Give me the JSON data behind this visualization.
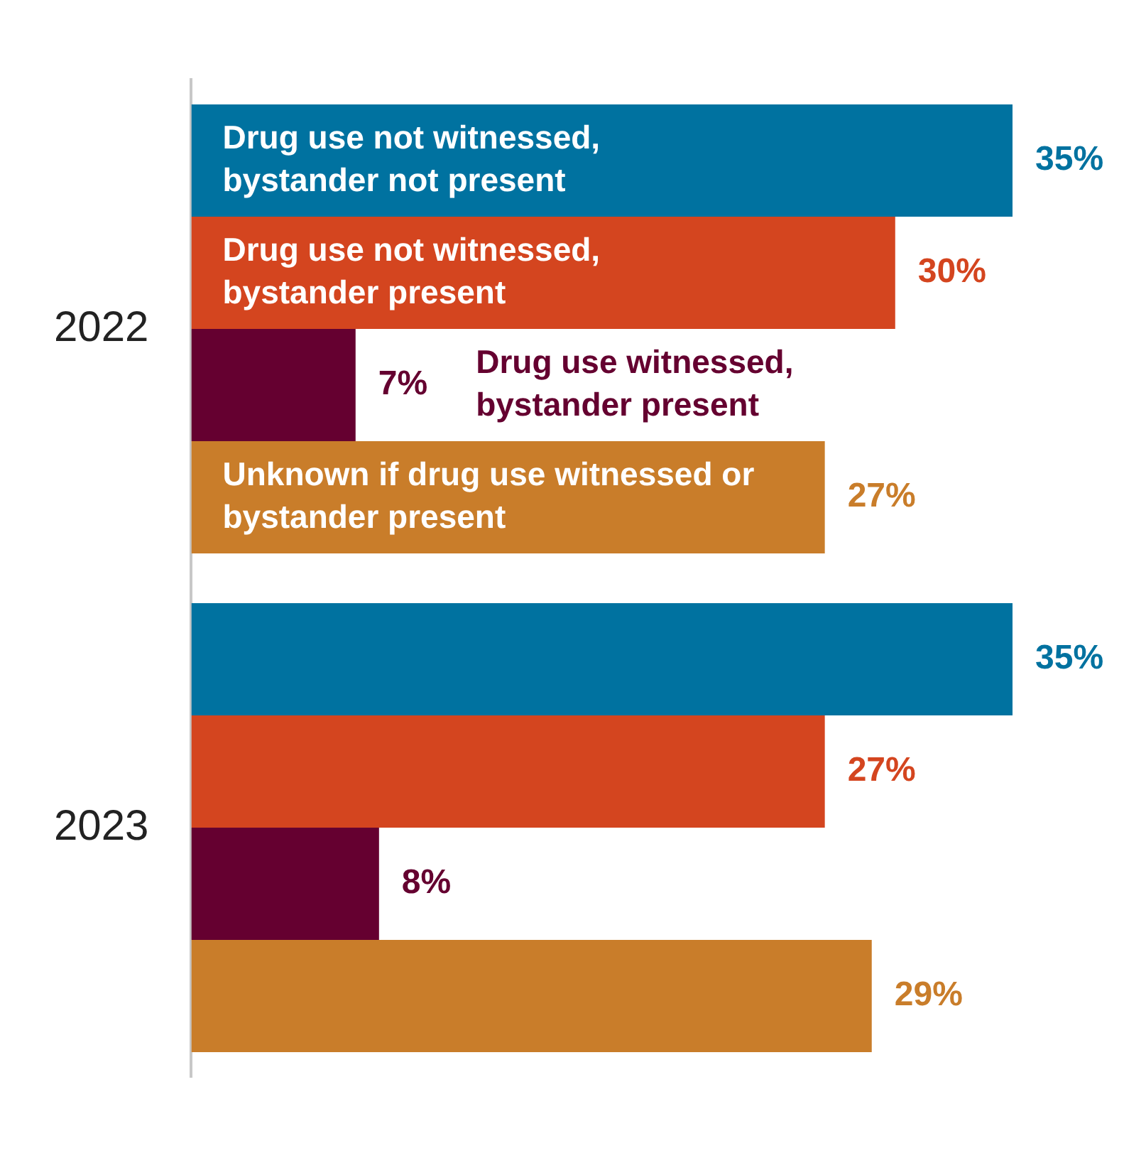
{
  "chart_data": {
    "type": "bar",
    "orientation": "horizontal",
    "categories": [
      "2022",
      "2023"
    ],
    "series": [
      {
        "name": "Drug use not witnessed, bystander not present",
        "color": "#0072a0",
        "values": [
          35,
          35
        ],
        "value_labels": [
          "35%",
          "35%"
        ]
      },
      {
        "name": "Drug use not witnessed, bystander present",
        "color": "#d4451f",
        "values": [
          30,
          27
        ],
        "value_labels": [
          "30%",
          "27%"
        ]
      },
      {
        "name": "Drug use witnessed, bystander present",
        "color": "#650030",
        "values": [
          7,
          8
        ],
        "value_labels": [
          "7%",
          "8%"
        ]
      },
      {
        "name": "Unknown if drug use witnessed or bystander present",
        "color": "#c97d2a",
        "values": [
          27,
          29
        ],
        "value_labels": [
          "27%",
          "29%"
        ]
      }
    ],
    "tick_labels": "y",
    "grid": false,
    "legend": false
  }
}
